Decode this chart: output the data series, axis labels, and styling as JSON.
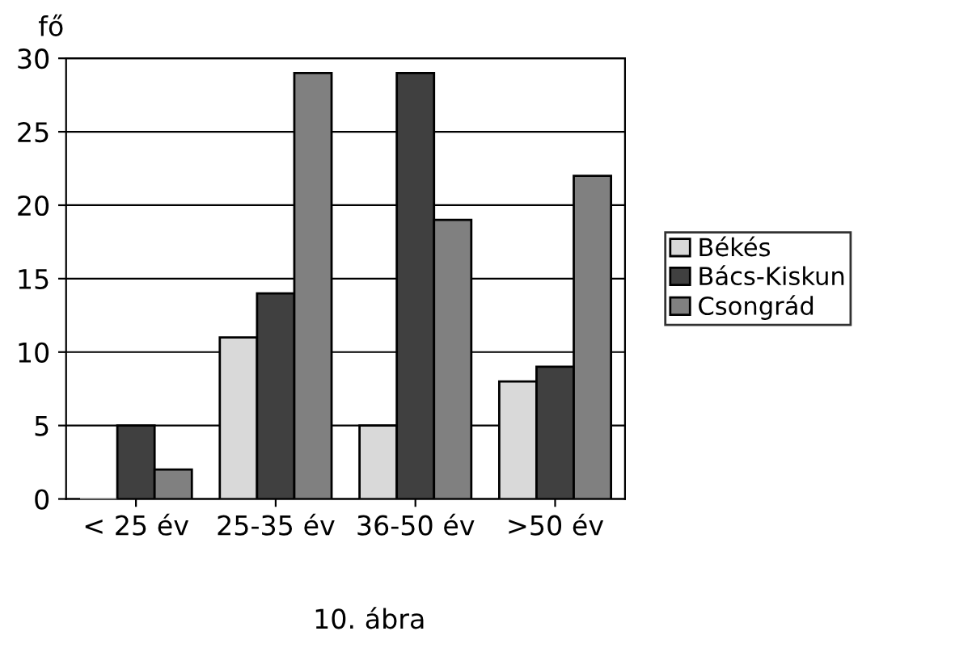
{
  "chart_data": {
    "type": "bar",
    "ylabel": "fő",
    "categories": [
      "< 25 év",
      "25-35 év",
      "36-50 év",
      ">50 év"
    ],
    "series": [
      {
        "name": "Békés",
        "color": "#d9d9d9",
        "values": [
          0,
          11,
          5,
          8
        ]
      },
      {
        "name": "Bács-Kiskun",
        "color": "#404040",
        "values": [
          5,
          14,
          29,
          9
        ]
      },
      {
        "name": "Csongrád",
        "color": "#808080",
        "values": [
          2,
          29,
          19,
          22
        ]
      }
    ],
    "ylim": [
      0,
      30
    ],
    "yticks": [
      0,
      5,
      10,
      15,
      20,
      25,
      30
    ],
    "grid": "y",
    "legend": "right",
    "annotations": [
      "10. ábra"
    ]
  }
}
